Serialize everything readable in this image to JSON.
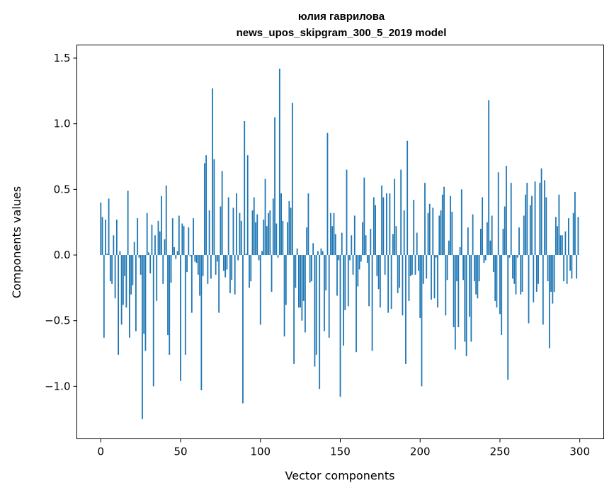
{
  "chart_data": {
    "type": "bar",
    "title": "юлия гаврилова",
    "subtitle": "news_upos_skipgram_300_5_2019 model",
    "xlabel": "Vector components",
    "ylabel": "Components values",
    "xlim": [
      -15,
      315
    ],
    "ylim": [
      -1.4,
      1.6
    ],
    "x_ticks": [
      0,
      50,
      100,
      150,
      200,
      250,
      300
    ],
    "x_tick_labels": [
      "0",
      "50",
      "100",
      "150",
      "200",
      "250",
      "300"
    ],
    "y_ticks": [
      -1.0,
      -0.5,
      0.0,
      0.5,
      1.0,
      1.5
    ],
    "y_tick_labels": [
      "−1.0",
      "−0.5",
      "0.0",
      "0.5",
      "1.0",
      "1.5"
    ],
    "bar_color": "#1f77b4",
    "grid": false,
    "values": [
      0.4,
      0.29,
      -0.63,
      0.27,
      0.01,
      0.43,
      -0.2,
      -0.22,
      0.15,
      -0.33,
      0.27,
      -0.76,
      0.03,
      -0.53,
      -0.38,
      -0.16,
      -0.4,
      0.49,
      -0.63,
      -0.3,
      -0.23,
      0.1,
      -0.58,
      0.28,
      -0.02,
      -0.15,
      -1.25,
      -0.6,
      -0.73,
      0.32,
      0.02,
      -0.14,
      0.23,
      -1.0,
      0.15,
      -0.35,
      0.26,
      0.18,
      0.45,
      -0.22,
      0.12,
      0.53,
      -0.61,
      -0.76,
      -0.21,
      0.28,
      0.06,
      -0.03,
      0.03,
      0.3,
      -0.96,
      0.24,
      0.22,
      -0.76,
      -0.13,
      0.21,
      -0.01,
      -0.44,
      0.28,
      -0.05,
      -0.06,
      -0.15,
      -0.31,
      -1.03,
      -0.16,
      0.7,
      0.76,
      -0.22,
      0.34,
      -0.18,
      1.27,
      0.73,
      -0.15,
      -0.05,
      -0.44,
      0.37,
      0.64,
      -0.12,
      -0.17,
      -0.11,
      0.44,
      -0.29,
      -0.19,
      0.36,
      -0.3,
      0.47,
      -0.04,
      0.32,
      0.26,
      -1.13,
      1.02,
      0.01,
      0.76,
      -0.25,
      -0.2,
      0.34,
      0.44,
      0.25,
      0.31,
      -0.04,
      -0.53,
      0.03,
      0.27,
      0.58,
      0.22,
      0.32,
      0.34,
      -0.28,
      0.43,
      1.05,
      0.24,
      -0.02,
      1.42,
      0.47,
      0.26,
      -0.62,
      -0.38,
      0.25,
      0.41,
      0.36,
      1.16,
      -0.83,
      -0.25,
      0.05,
      -0.4,
      -0.4,
      -0.5,
      -0.35,
      -0.59,
      0.21,
      0.47,
      -0.21,
      -0.2,
      0.09,
      -0.85,
      -0.76,
      0.03,
      -1.02,
      0.05,
      0.03,
      -0.58,
      -0.27,
      0.93,
      -0.63,
      0.32,
      0.22,
      0.32,
      0.16,
      -0.31,
      -0.04,
      -1.08,
      0.17,
      -0.69,
      -0.42,
      0.65,
      -0.39,
      -0.04,
      0.15,
      -0.15,
      0.3,
      -0.74,
      -0.24,
      -0.11,
      -0.05,
      0.25,
      0.59,
      0.15,
      -0.06,
      -0.39,
      0.2,
      -0.73,
      0.44,
      0.38,
      -0.16,
      -0.26,
      -0.4,
      0.53,
      0.44,
      -0.15,
      0.47,
      -0.44,
      0.47,
      -0.41,
      0.16,
      0.58,
      0.22,
      -0.29,
      -0.25,
      0.65,
      -0.46,
      0.34,
      -0.83,
      0.87,
      -0.35,
      -0.16,
      -0.15,
      0.42,
      -0.15,
      0.17,
      -0.12,
      -0.48,
      -1.0,
      -0.22,
      0.55,
      -0.18,
      0.32,
      0.39,
      -0.34,
      0.36,
      -0.33,
      -0.02,
      -0.4,
      0.3,
      0.34,
      0.46,
      0.52,
      -0.46,
      -0.19,
      0.11,
      0.45,
      0.33,
      -0.55,
      -0.72,
      -0.2,
      -0.55,
      0.06,
      0.5,
      -0.19,
      -0.66,
      -0.77,
      0.21,
      -0.47,
      -0.66,
      0.31,
      -0.2,
      -0.3,
      -0.33,
      -0.2,
      0.2,
      0.44,
      -0.06,
      -0.04,
      0.25,
      1.18,
      0.11,
      0.3,
      -0.13,
      -0.35,
      -0.4,
      0.63,
      -0.45,
      -0.61,
      0.2,
      0.37,
      0.68,
      -0.95,
      -0.02,
      0.55,
      -0.18,
      -0.22,
      -0.3,
      -0.02,
      0.21,
      -0.3,
      -0.28,
      0.3,
      0.46,
      0.55,
      -0.52,
      0.38,
      0.45,
      -0.36,
      0.56,
      -0.28,
      -0.22,
      0.55,
      0.66,
      -0.53,
      0.57,
      0.44,
      -0.2,
      -0.71,
      -0.28,
      -0.37,
      -0.28,
      0.29,
      0.22,
      0.46,
      0.15,
      0.15,
      -0.2,
      0.18,
      -0.22,
      0.28,
      -0.12,
      -0.18,
      0.32,
      0.48,
      -0.18,
      0.29
    ]
  }
}
